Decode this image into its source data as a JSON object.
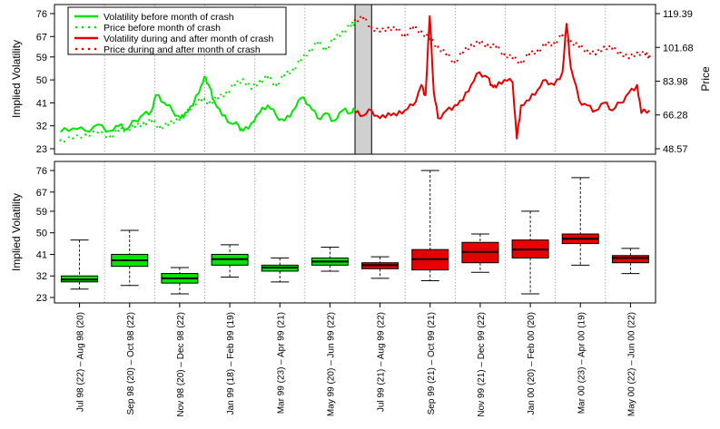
{
  "chart_data": [
    {
      "type": "line",
      "ylabel": "Implied Volatility",
      "y2label": "Price",
      "ylim": [
        23,
        76
      ],
      "y2lim": [
        48.57,
        119.39
      ],
      "yticks": [
        "23",
        "32",
        "41",
        "50",
        "59",
        "67",
        "76"
      ],
      "y2ticks": [
        "48.57",
        "66.28",
        "83.98",
        "101.68",
        "119.39"
      ],
      "legend": [
        {
          "label": "Volatility before month of crash",
          "color": "#00e600",
          "style": "solid"
        },
        {
          "label": "Price before month of crash",
          "color": "#00e600",
          "style": "dotted"
        },
        {
          "label": "Volatility during and after month of crash",
          "color": "#e60000",
          "style": "solid"
        },
        {
          "label": "Price during and after month of crash",
          "color": "#e60000",
          "style": "dotted"
        }
      ],
      "crash_window": {
        "start_week": 72,
        "end_week": 76
      },
      "series": [
        {
          "name": "Volatility before month of crash",
          "points": [
            [
              1,
              29.5
            ],
            [
              4,
              31
            ],
            [
              7,
              30
            ],
            [
              10,
              32.5
            ],
            [
              13,
              30
            ],
            [
              15,
              32
            ],
            [
              17,
              30.5
            ],
            [
              19,
              34
            ],
            [
              21,
              36.5
            ],
            [
              23,
              38
            ],
            [
              24,
              44
            ],
            [
              26,
              41
            ],
            [
              28,
              38
            ],
            [
              30,
              35
            ],
            [
              31,
              37
            ],
            [
              33,
              40
            ],
            [
              35,
              48
            ],
            [
              36,
              51
            ],
            [
              37,
              47
            ],
            [
              38,
              42
            ],
            [
              40,
              36
            ],
            [
              42,
              33
            ],
            [
              44,
              32
            ],
            [
              45,
              30
            ],
            [
              47,
              33
            ],
            [
              49,
              37
            ],
            [
              51,
              40
            ],
            [
              53,
              36
            ],
            [
              55,
              34
            ],
            [
              57,
              38
            ],
            [
              59,
              43
            ],
            [
              61,
              40
            ],
            [
              63,
              35
            ],
            [
              65,
              37
            ],
            [
              67,
              34
            ],
            [
              69,
              38
            ],
            [
              71,
              37
            ],
            [
              72,
              38
            ]
          ]
        },
        {
          "name": "Price before month of crash",
          "points": [
            [
              1,
              53
            ],
            [
              4,
              54
            ],
            [
              7,
              56
            ],
            [
              10,
              57
            ],
            [
              13,
              55
            ],
            [
              15,
              58
            ],
            [
              17,
              59
            ],
            [
              19,
              60
            ],
            [
              21,
              62
            ],
            [
              23,
              63
            ],
            [
              25,
              60
            ],
            [
              27,
              61
            ],
            [
              29,
              64
            ],
            [
              31,
              66
            ],
            [
              33,
              72
            ],
            [
              35,
              74
            ],
            [
              37,
              73
            ],
            [
              39,
              75
            ],
            [
              41,
              78
            ],
            [
              43,
              82
            ],
            [
              45,
              85
            ],
            [
              47,
              80
            ],
            [
              49,
              84
            ],
            [
              51,
              86
            ],
            [
              53,
              82
            ],
            [
              55,
              87
            ],
            [
              57,
              90
            ],
            [
              59,
              95
            ],
            [
              61,
              100
            ],
            [
              63,
              104
            ],
            [
              65,
              101
            ],
            [
              67,
              106
            ],
            [
              69,
              110
            ],
            [
              71,
              113
            ],
            [
              72,
              115
            ]
          ]
        },
        {
          "name": "Volatility during and after month of crash",
          "points": [
            [
              72,
              37
            ],
            [
              74,
              36
            ],
            [
              76,
              38
            ],
            [
              78,
              35
            ],
            [
              80,
              37
            ],
            [
              82,
              36
            ],
            [
              84,
              38
            ],
            [
              86,
              40
            ],
            [
              88,
              48
            ],
            [
              89,
              44
            ],
            [
              90,
              75
            ],
            [
              91,
              45
            ],
            [
              92,
              35
            ],
            [
              94,
              38
            ],
            [
              96,
              40
            ],
            [
              98,
              42
            ],
            [
              100,
              48
            ],
            [
              102,
              53
            ],
            [
              104,
              51
            ],
            [
              105,
              48
            ],
            [
              106,
              47
            ],
            [
              108,
              50
            ],
            [
              110,
              49
            ],
            [
              111,
              27
            ],
            [
              112,
              40
            ],
            [
              114,
              42
            ],
            [
              116,
              46
            ],
            [
              118,
              50
            ],
            [
              120,
              48
            ],
            [
              122,
              53
            ],
            [
              123,
              72
            ],
            [
              124,
              55
            ],
            [
              126,
              42
            ],
            [
              128,
              40
            ],
            [
              130,
              38
            ],
            [
              132,
              41
            ],
            [
              134,
              38
            ],
            [
              136,
              41
            ],
            [
              138,
              45
            ],
            [
              140,
              48
            ],
            [
              141,
              37
            ],
            [
              143,
              38
            ]
          ]
        },
        {
          "name": "Price during and after month of crash",
          "points": [
            [
              72,
              116
            ],
            [
              74,
              117
            ],
            [
              76,
              112
            ],
            [
              78,
              110
            ],
            [
              80,
              112
            ],
            [
              82,
              111
            ],
            [
              84,
              108
            ],
            [
              86,
              112
            ],
            [
              88,
              110
            ],
            [
              90,
              106
            ],
            [
              92,
              102
            ],
            [
              94,
              98
            ],
            [
              96,
              94
            ],
            [
              98,
              99
            ],
            [
              100,
              103
            ],
            [
              102,
              104
            ],
            [
              104,
              103
            ],
            [
              106,
              102
            ],
            [
              108,
              98
            ],
            [
              110,
              96
            ],
            [
              112,
              94
            ],
            [
              114,
              98
            ],
            [
              116,
              100
            ],
            [
              118,
              103
            ],
            [
              120,
              104
            ],
            [
              122,
              108
            ],
            [
              124,
              105
            ],
            [
              126,
              102
            ],
            [
              128,
              100
            ],
            [
              130,
              98
            ],
            [
              132,
              102
            ],
            [
              134,
              101
            ],
            [
              136,
              99
            ],
            [
              138,
              96
            ],
            [
              140,
              99
            ],
            [
              142,
              98
            ],
            [
              143,
              97
            ]
          ]
        }
      ]
    },
    {
      "type": "box",
      "ylabel": "Implied Volatility",
      "ylim": [
        23,
        76
      ],
      "yticks": [
        "23",
        "32",
        "41",
        "50",
        "59",
        "67",
        "76"
      ],
      "categories": [
        "Jul 98 (22) – Aug 98 (20)",
        "Sep 98 (20) – Oct 98 (22)",
        "Nov 98 (20) – Dec 98 (22)",
        "Jan 99 (18) – Feb 99 (19)",
        "Mar 99 (23) – Apr 99 (21)",
        "May 99 (20) – Jun 99 (22)",
        "Jul 99 (21) – Aug 99 (22)",
        "Sep 99 (21) – Oct 99 (21)",
        "Nov 99 (21) – Dec 99 (22)",
        "Jan 00 (20) – Feb 00 (20)",
        "Mar 00 (23) – Apr 00 (19)",
        "May 00 (22) – Jun 00 (22)"
      ],
      "boxes": [
        {
          "min": 26.5,
          "q1": 29.5,
          "median": 30.5,
          "q3": 32.0,
          "max": 47.0,
          "color": "#00e600"
        },
        {
          "min": 28.0,
          "q1": 36.0,
          "median": 38.5,
          "q3": 41.0,
          "max": 51.0,
          "color": "#00e600"
        },
        {
          "min": 24.5,
          "q1": 29.0,
          "median": 31.0,
          "q3": 33.0,
          "max": 35.5,
          "color": "#00e600"
        },
        {
          "min": 31.5,
          "q1": 36.5,
          "median": 39.0,
          "q3": 41.0,
          "max": 45.0,
          "color": "#00e600"
        },
        {
          "min": 29.5,
          "q1": 34.0,
          "median": 35.5,
          "q3": 36.5,
          "max": 39.5,
          "color": "#00e600"
        },
        {
          "min": 34.0,
          "q1": 36.5,
          "median": 38.0,
          "q3": 39.5,
          "max": 44.0,
          "color": "#00e600"
        },
        {
          "min": 31.0,
          "q1": 35.0,
          "median": 36.5,
          "q3": 37.5,
          "max": 40.0,
          "color": "#e60000"
        },
        {
          "min": 30.0,
          "q1": 34.5,
          "median": 39.0,
          "q3": 43.0,
          "max": 76.0,
          "color": "#e60000"
        },
        {
          "min": 33.5,
          "q1": 37.5,
          "median": 42.0,
          "q3": 46.0,
          "max": 49.5,
          "color": "#e60000"
        },
        {
          "min": 24.5,
          "q1": 39.5,
          "median": 43.0,
          "q3": 47.0,
          "max": 59.0,
          "color": "#e60000"
        },
        {
          "min": 36.5,
          "q1": 45.5,
          "median": 47.5,
          "q3": 49.5,
          "max": 73.0,
          "color": "#e60000"
        },
        {
          "min": 33.0,
          "q1": 37.5,
          "median": 39.5,
          "q3": 40.5,
          "max": 43.5,
          "color": "#e60000"
        }
      ]
    }
  ]
}
